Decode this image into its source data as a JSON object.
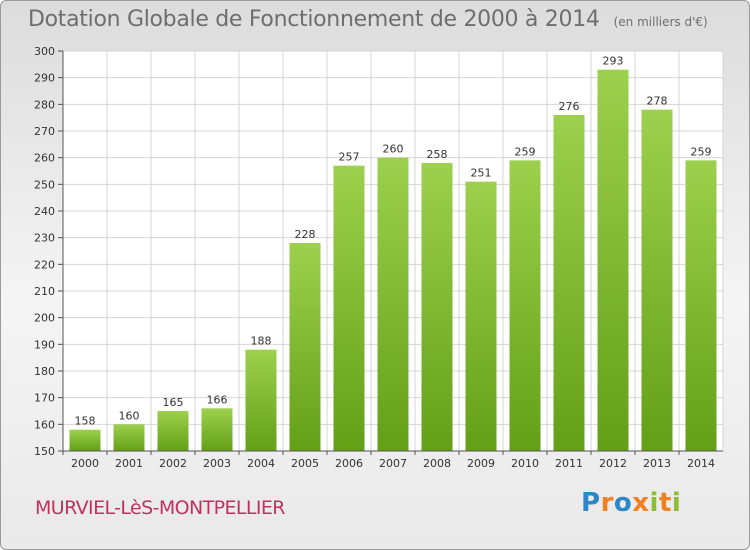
{
  "header": {
    "title": "Dotation Globale de Fonctionnement de 2000 à 2014",
    "unit": "(en milliers d'€)"
  },
  "footer": {
    "commune": "MURVIEL-LèS-MONTPELLIER",
    "brand_letters": [
      "P",
      "r",
      "o",
      "x",
      "i",
      "t",
      "i"
    ]
  },
  "colors": {
    "bar_top": "#9dd04c",
    "bar_bottom": "#63a016",
    "grid": "#d4d4d4",
    "axis": "#555555",
    "text": "#333333"
  },
  "chart_data": {
    "type": "bar",
    "title": "Dotation Globale de Fonctionnement de 2000 à 2014",
    "xlabel": "",
    "ylabel": "",
    "ylim": [
      150,
      300
    ],
    "yticks": [
      150,
      160,
      170,
      180,
      190,
      200,
      210,
      220,
      230,
      240,
      250,
      260,
      270,
      280,
      290,
      300
    ],
    "grid": true,
    "categories": [
      "2000",
      "2001",
      "2002",
      "2003",
      "2004",
      "2005",
      "2006",
      "2007",
      "2008",
      "2009",
      "2010",
      "2011",
      "2012",
      "2013",
      "2014"
    ],
    "values": [
      158,
      160,
      165,
      166,
      188,
      228,
      257,
      260,
      258,
      251,
      259,
      276,
      293,
      278,
      259
    ]
  }
}
